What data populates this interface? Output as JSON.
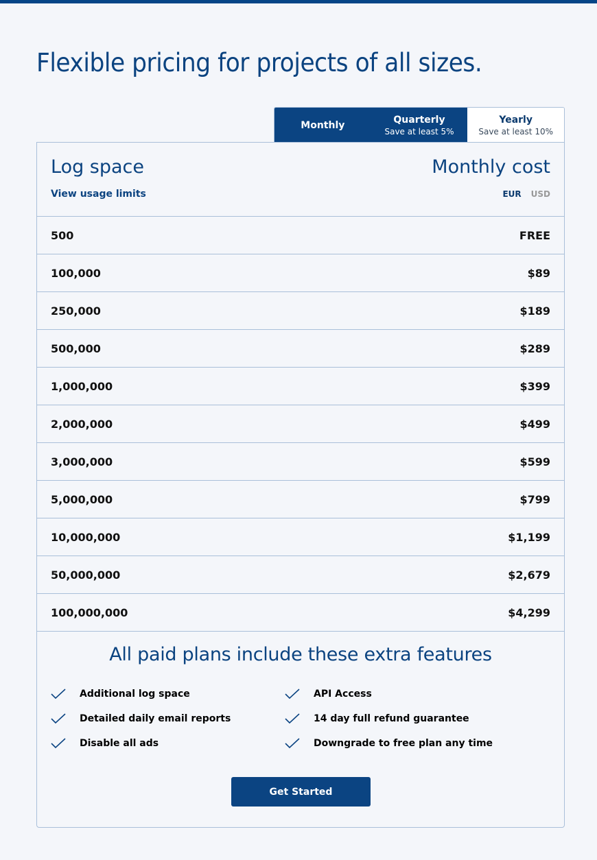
{
  "title": "Flexible pricing for projects of all sizes.",
  "billing_tabs": [
    {
      "label": "Monthly",
      "note": ""
    },
    {
      "label": "Quarterly",
      "note": "Save at least 5%"
    },
    {
      "label": "Yearly",
      "note": "Save at least 10%"
    }
  ],
  "active_tab": "Monthly",
  "table": {
    "col_left": "Log space",
    "col_right": "Monthly cost",
    "usage_link": "View usage limits",
    "currencies": [
      "EUR",
      "USD"
    ],
    "selected_currency": "EUR",
    "rows": [
      {
        "space": "500",
        "price": "FREE"
      },
      {
        "space": "100,000",
        "price": "$89"
      },
      {
        "space": "250,000",
        "price": "$189"
      },
      {
        "space": "500,000",
        "price": "$289"
      },
      {
        "space": "1,000,000",
        "price": "$399"
      },
      {
        "space": "2,000,000",
        "price": "$499"
      },
      {
        "space": "3,000,000",
        "price": "$599"
      },
      {
        "space": "5,000,000",
        "price": "$799"
      },
      {
        "space": "10,000,000",
        "price": "$1,199"
      },
      {
        "space": "50,000,000",
        "price": "$2,679"
      },
      {
        "space": "100,000,000",
        "price": "$4,299"
      }
    ]
  },
  "features": {
    "heading": "All paid plans include these extra features",
    "items": [
      "Additional log space",
      "API Access",
      "Detailed daily email reports",
      "14 day full refund guarantee",
      "Disable all ads",
      "Downgrade to free plan any time"
    ],
    "icon": "check-icon"
  },
  "cta": "Get Started",
  "colors": {
    "brand": "#0b4482",
    "border": "#a9bfd9",
    "background": "#f4f6fa"
  }
}
